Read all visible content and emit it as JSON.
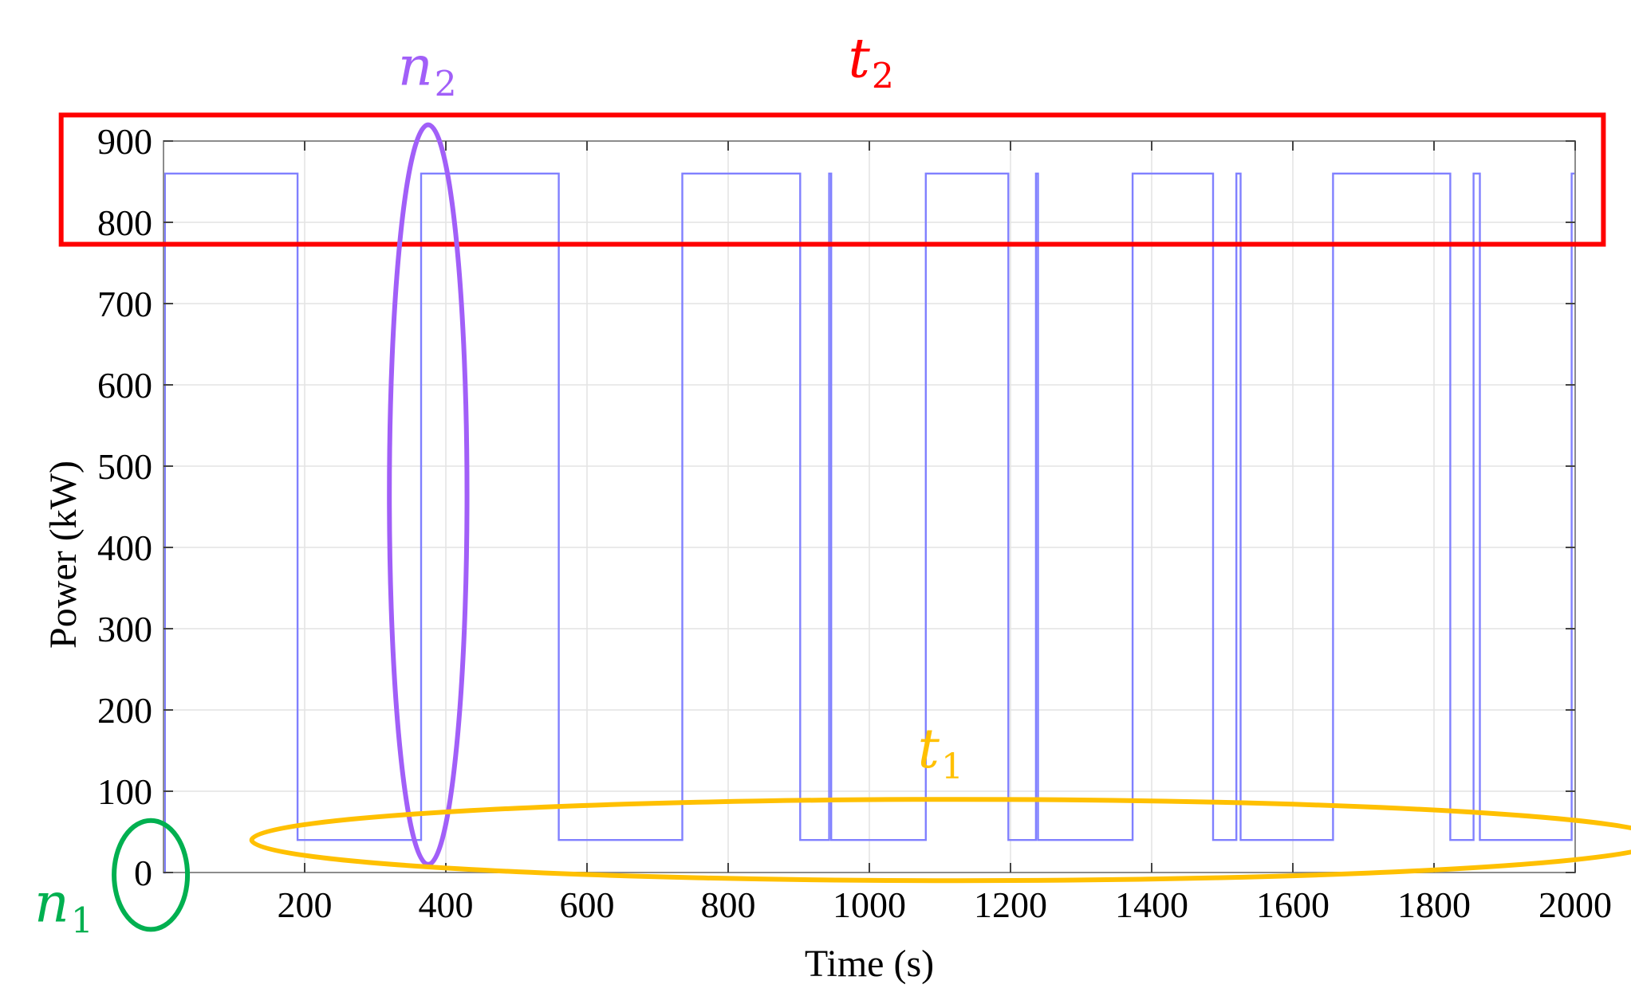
{
  "chart_data": {
    "type": "line",
    "title": "",
    "xlabel": "Time (s)",
    "ylabel": "Power (kW)",
    "xlim": [
      0,
      2000
    ],
    "ylim": [
      0,
      900
    ],
    "xticks": [
      200,
      400,
      600,
      800,
      1000,
      1200,
      1400,
      1600,
      1800,
      2000
    ],
    "yticks": [
      0,
      100,
      200,
      300,
      400,
      500,
      600,
      700,
      800,
      900
    ],
    "grid": true,
    "series": [
      {
        "color": "#8080ff",
        "x": [
          0,
          2,
          2,
          190,
          190,
          365,
          365,
          368,
          368,
          560,
          560,
          735,
          735,
          902,
          902,
          943,
          943,
          946,
          946,
          1080,
          1080,
          1197,
          1197,
          1236,
          1236,
          1239,
          1239,
          1373,
          1373,
          1487,
          1487,
          1520,
          1520,
          1526,
          1526,
          1657,
          1657,
          1823,
          1823,
          1856,
          1856,
          1865,
          1865,
          1995,
          1995,
          2000
        ],
        "y": [
          0,
          0,
          860,
          860,
          40,
          40,
          860,
          860,
          860,
          860,
          40,
          40,
          860,
          860,
          40,
          40,
          860,
          860,
          40,
          40,
          860,
          860,
          40,
          40,
          860,
          860,
          40,
          40,
          860,
          860,
          40,
          40,
          860,
          860,
          40,
          40,
          860,
          860,
          40,
          40,
          860,
          860,
          40,
          40,
          860,
          860
        ]
      }
    ],
    "annotations": [
      {
        "label": "t",
        "subscript": "2",
        "color": "#ff0000",
        "shape": "rectangle",
        "x_range": [
          -145,
          2040
        ],
        "y_range": [
          773,
          932
        ]
      },
      {
        "label": "n",
        "subscript": "2",
        "color": "#a15ff8",
        "shape": "ellipse",
        "center": [
          375,
          465
        ],
        "radius_x": 55,
        "radius_y": 455
      },
      {
        "label": "t",
        "subscript": "1",
        "color": "#ffc000",
        "shape": "ellipse",
        "center": [
          1125,
          40
        ],
        "radius_x": 1000,
        "radius_y": 50
      },
      {
        "label": "n",
        "subscript": "1",
        "color": "#00b050",
        "shape": "circle",
        "center": [
          -18,
          -3
        ],
        "radius_x": 52,
        "radius_y": 67
      }
    ]
  }
}
